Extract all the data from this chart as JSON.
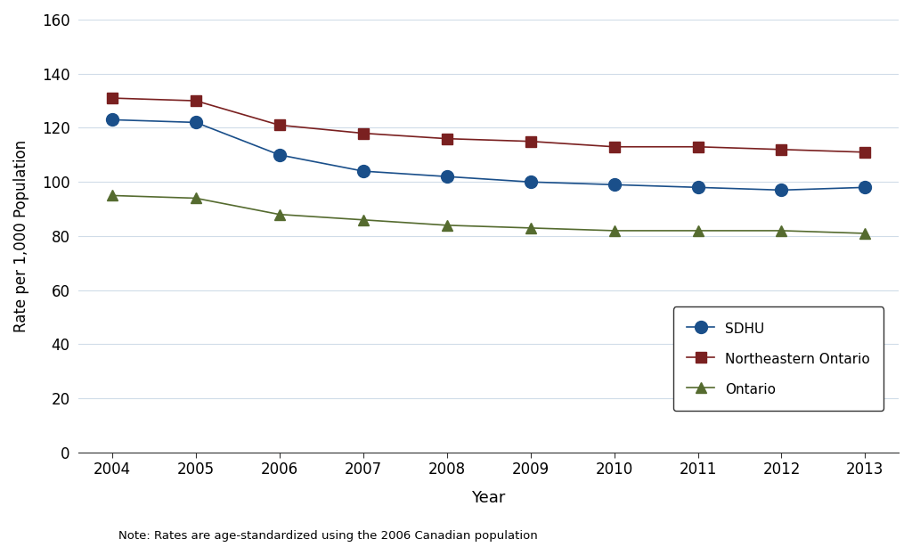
{
  "years": [
    2004,
    2005,
    2006,
    2007,
    2008,
    2009,
    2010,
    2011,
    2012,
    2013
  ],
  "sdhu": [
    123,
    122,
    110,
    104,
    102,
    100,
    99,
    98,
    97,
    98
  ],
  "northeastern_ontario": [
    131,
    130,
    121,
    118,
    116,
    115,
    113,
    113,
    112,
    111
  ],
  "ontario": [
    95,
    94,
    88,
    86,
    84,
    83,
    82,
    82,
    82,
    81
  ],
  "sdhu_color": "#1a4f8a",
  "northeastern_color": "#7a2020",
  "ontario_color": "#556b2f",
  "ylabel": "Rate per 1,000 Population",
  "xlabel": "Year",
  "note": "Note: Rates are age-standardized using the 2006 Canadian population",
  "ylim": [
    0,
    160
  ],
  "yticks": [
    0,
    20,
    40,
    60,
    80,
    100,
    120,
    140,
    160
  ],
  "legend_labels": [
    "SDHU",
    "Northeastern Ontario",
    "Ontario"
  ],
  "background_color": "#ffffff",
  "grid_color": "#d0dce8"
}
